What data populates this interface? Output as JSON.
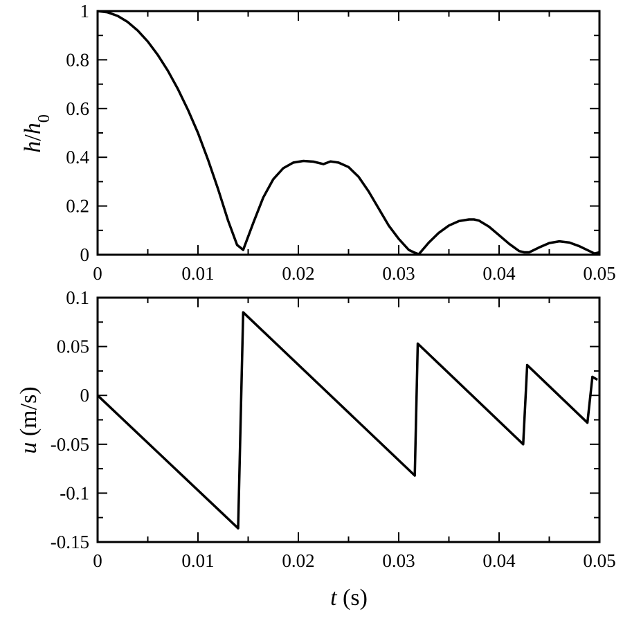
{
  "chart_data": [
    {
      "type": "line",
      "title": "",
      "xlabel": "",
      "ylabel": {
        "var": "h",
        "slash": "/",
        "den": "h",
        "sub": "0"
      },
      "xlim": [
        0,
        0.05
      ],
      "ylim": [
        0,
        1
      ],
      "x_ticks": [
        0,
        0.01,
        0.02,
        0.03,
        0.04,
        0.05
      ],
      "x_tick_labels": [
        "0",
        "0.01",
        "0.02",
        "0.03",
        "0.04",
        "0.05"
      ],
      "y_ticks": [
        0,
        0.2,
        0.4,
        0.6,
        0.8,
        1
      ],
      "y_tick_labels": [
        "0",
        "0.2",
        "0.4",
        "0.6",
        "0.8",
        "1"
      ],
      "grid": false,
      "series": [
        {
          "x": [
            0,
            0.001,
            0.002,
            0.003,
            0.004,
            0.005,
            0.006,
            0.007,
            0.008,
            0.009,
            0.01,
            0.011,
            0.012,
            0.013,
            0.0139,
            0.0142,
            0.0145,
            0.0155,
            0.0165,
            0.0175,
            0.0185,
            0.0195,
            0.0205,
            0.0215,
            0.0225,
            0.0232,
            0.024,
            0.025,
            0.026,
            0.027,
            0.028,
            0.029,
            0.03,
            0.031,
            0.0315,
            0.032,
            0.033,
            0.034,
            0.035,
            0.036,
            0.037,
            0.0375,
            0.038,
            0.039,
            0.04,
            0.041,
            0.042,
            0.0425,
            0.043,
            0.044,
            0.045,
            0.046,
            0.047,
            0.048,
            0.049,
            0.0495,
            0.05
          ],
          "y": [
            1.0,
            0.995,
            0.98,
            0.955,
            0.92,
            0.875,
            0.82,
            0.755,
            0.68,
            0.595,
            0.5,
            0.39,
            0.27,
            0.14,
            0.04,
            0.03,
            0.02,
            0.13,
            0.235,
            0.31,
            0.355,
            0.378,
            0.385,
            0.382,
            0.372,
            0.383,
            0.378,
            0.36,
            0.32,
            0.26,
            0.19,
            0.12,
            0.065,
            0.02,
            0.01,
            0.002,
            0.05,
            0.09,
            0.12,
            0.138,
            0.145,
            0.145,
            0.14,
            0.115,
            0.08,
            0.045,
            0.015,
            0.01,
            0.01,
            0.03,
            0.048,
            0.055,
            0.05,
            0.035,
            0.015,
            0.005,
            0.01
          ]
        }
      ]
    },
    {
      "type": "line",
      "title": "",
      "xlabel": {
        "var": "t",
        "unit": "(s)"
      },
      "ylabel": {
        "var": "u",
        "unit": "(m/s)"
      },
      "xlim": [
        0,
        0.05
      ],
      "ylim": [
        -0.15,
        0.1
      ],
      "x_ticks": [
        0,
        0.01,
        0.02,
        0.03,
        0.04,
        0.05
      ],
      "x_tick_labels": [
        "0",
        "0.01",
        "0.02",
        "0.03",
        "0.04",
        "0.05"
      ],
      "y_ticks": [
        -0.15,
        -0.1,
        -0.05,
        0,
        0.05,
        0.1
      ],
      "y_tick_labels": [
        "-0.15",
        "-0.1",
        "-0.05",
        "0",
        "0.05",
        "0.1"
      ],
      "grid": false,
      "series": [
        {
          "x": [
            0,
            0.014,
            0.0145,
            0.0316,
            0.0319,
            0.0424,
            0.0428,
            0.0488,
            0.0493,
            0.0498
          ],
          "y": [
            0,
            -0.136,
            0.085,
            -0.082,
            0.053,
            -0.05,
            0.031,
            -0.028,
            0.019,
            0.016
          ]
        }
      ]
    }
  ]
}
